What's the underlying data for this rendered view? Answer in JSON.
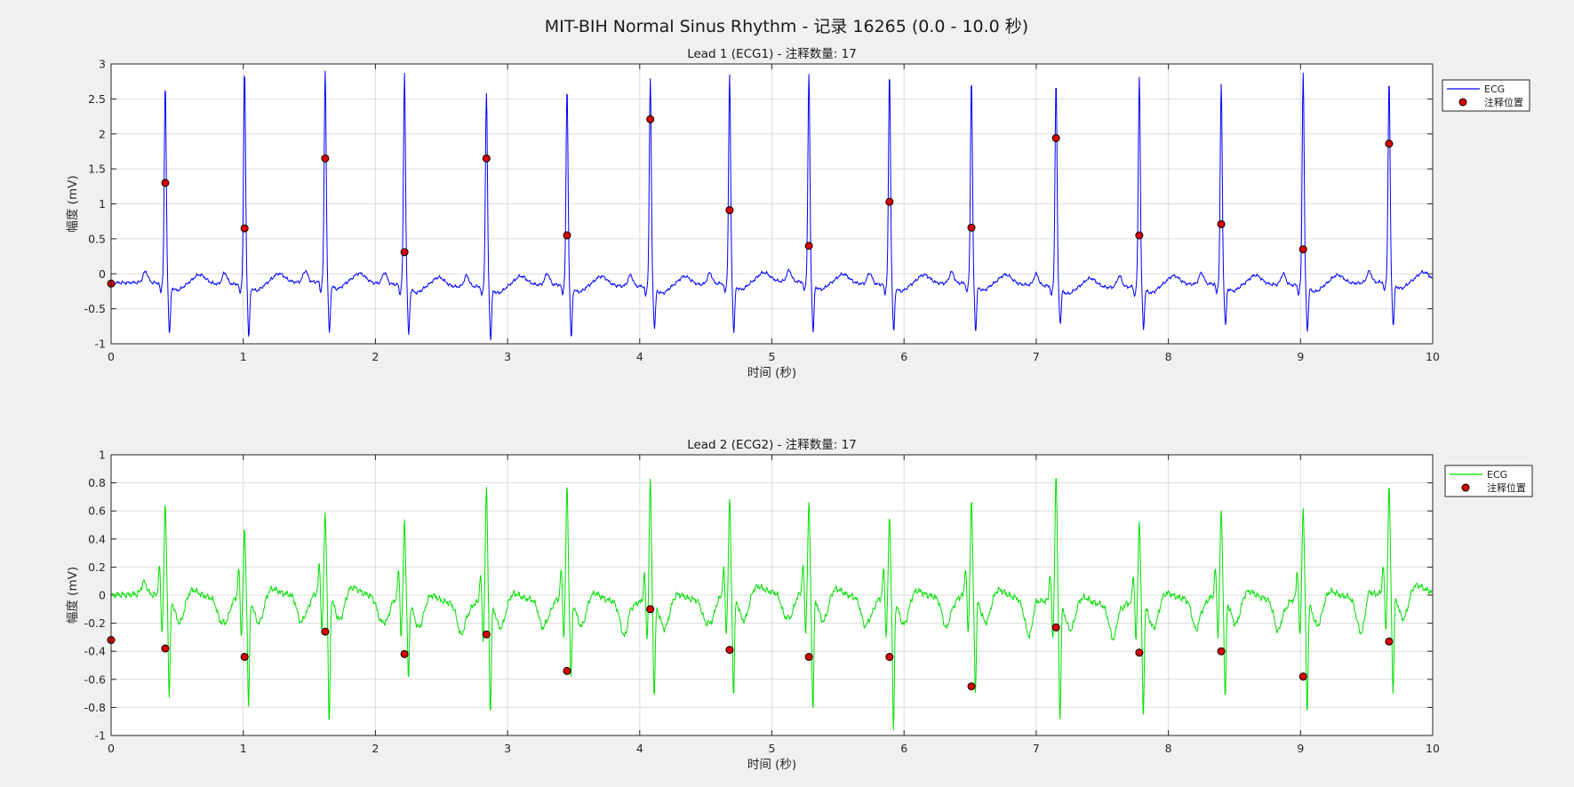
{
  "figure_title": "MIT-BIH Normal Sinus Rhythm - 记录 16265 (0.0 - 10.0 秒)",
  "colors": {
    "lead1_line": "#0000ff",
    "lead2_line": "#00e000",
    "marker_fill": "#dd0000",
    "marker_edge": "#000000",
    "grid": "#dcdcdc",
    "figure_bg": "#f0f0f0",
    "axes_bg": "#ffffff"
  },
  "chart_data": [
    {
      "type": "line",
      "title": "Lead 1 (ECG1) - 注释数量: 17",
      "xlabel": "时间 (秒)",
      "ylabel": "幅度 (mV)",
      "xlim": [
        0,
        10
      ],
      "ylim": [
        -1,
        3
      ],
      "xticks": [
        "0",
        "1",
        "2",
        "3",
        "4",
        "5",
        "6",
        "7",
        "8",
        "9",
        "10"
      ],
      "yticks": [
        "-1",
        "-0.5",
        "0",
        "0.5",
        "1",
        "1.5",
        "2",
        "2.5",
        "3"
      ],
      "grid": true,
      "legend": {
        "position": "outside-top-right",
        "entries": [
          "ECG",
          "注释位置"
        ]
      },
      "signal": {
        "name": "ECG",
        "baseline": -0.15,
        "r_peak_amplitudes": [
          2.68,
          2.9,
          2.87,
          2.88,
          2.62,
          2.66,
          2.82,
          2.82,
          2.82,
          2.88,
          2.77,
          2.8,
          2.86,
          2.72,
          2.9,
          2.75
        ],
        "s_wave_minima": [
          -0.85,
          -0.88,
          -0.85,
          -0.82,
          -0.88,
          -0.88,
          -0.72,
          -0.82,
          -0.82,
          -0.8,
          -0.8,
          -0.65,
          -0.72,
          -0.72,
          -0.78,
          -0.75
        ]
      },
      "annotations": {
        "name": "注释位置",
        "x": [
          0.0,
          0.41,
          1.01,
          1.62,
          2.22,
          2.84,
          3.45,
          4.08,
          4.68,
          5.28,
          5.89,
          6.51,
          7.15,
          7.78,
          8.4,
          9.02,
          9.67
        ],
        "y": [
          -0.14,
          1.3,
          0.65,
          1.65,
          0.31,
          1.65,
          0.55,
          2.21,
          0.91,
          0.4,
          1.03,
          0.66,
          1.94,
          0.55,
          0.71,
          0.35,
          1.86
        ]
      }
    },
    {
      "type": "line",
      "title": "Lead 2 (ECG2) - 注释数量: 17",
      "xlabel": "时间 (秒)",
      "ylabel": "幅度 (mV)",
      "xlim": [
        0,
        10
      ],
      "ylim": [
        -1,
        1
      ],
      "xticks": [
        "0",
        "1",
        "2",
        "3",
        "4",
        "5",
        "6",
        "7",
        "8",
        "9",
        "10"
      ],
      "yticks": [
        "-1",
        "-0.8",
        "-0.6",
        "-0.4",
        "-0.2",
        "0",
        "0.2",
        "0.4",
        "0.6",
        "0.8",
        "1"
      ],
      "grid": true,
      "legend": {
        "position": "outside-top-right",
        "entries": [
          "ECG",
          "注释位置"
        ]
      },
      "signal": {
        "name": "ECG",
        "baseline": -0.02,
        "r_peak_amplitudes": [
          0.62,
          0.45,
          0.55,
          0.54,
          0.8,
          0.78,
          0.85,
          0.65,
          0.62,
          0.55,
          0.66,
          0.9,
          0.56,
          0.6,
          0.64,
          0.75
        ],
        "s_wave_minima": [
          -0.73,
          -0.78,
          -0.95,
          -0.57,
          -0.8,
          -0.56,
          -0.68,
          -0.72,
          -0.84,
          -0.96,
          -0.68,
          -0.84,
          -0.82,
          -0.74,
          -0.82,
          -0.72
        ]
      },
      "annotations": {
        "name": "注释位置",
        "x": [
          0.0,
          0.41,
          1.01,
          1.62,
          2.22,
          2.84,
          3.45,
          4.08,
          4.68,
          5.28,
          5.89,
          6.51,
          7.15,
          7.78,
          8.4,
          9.02,
          9.67
        ],
        "y": [
          -0.32,
          -0.38,
          -0.44,
          -0.26,
          -0.42,
          -0.28,
          -0.54,
          -0.1,
          -0.39,
          -0.44,
          -0.44,
          -0.65,
          -0.23,
          -0.41,
          -0.4,
          -0.58,
          -0.33
        ]
      }
    }
  ]
}
